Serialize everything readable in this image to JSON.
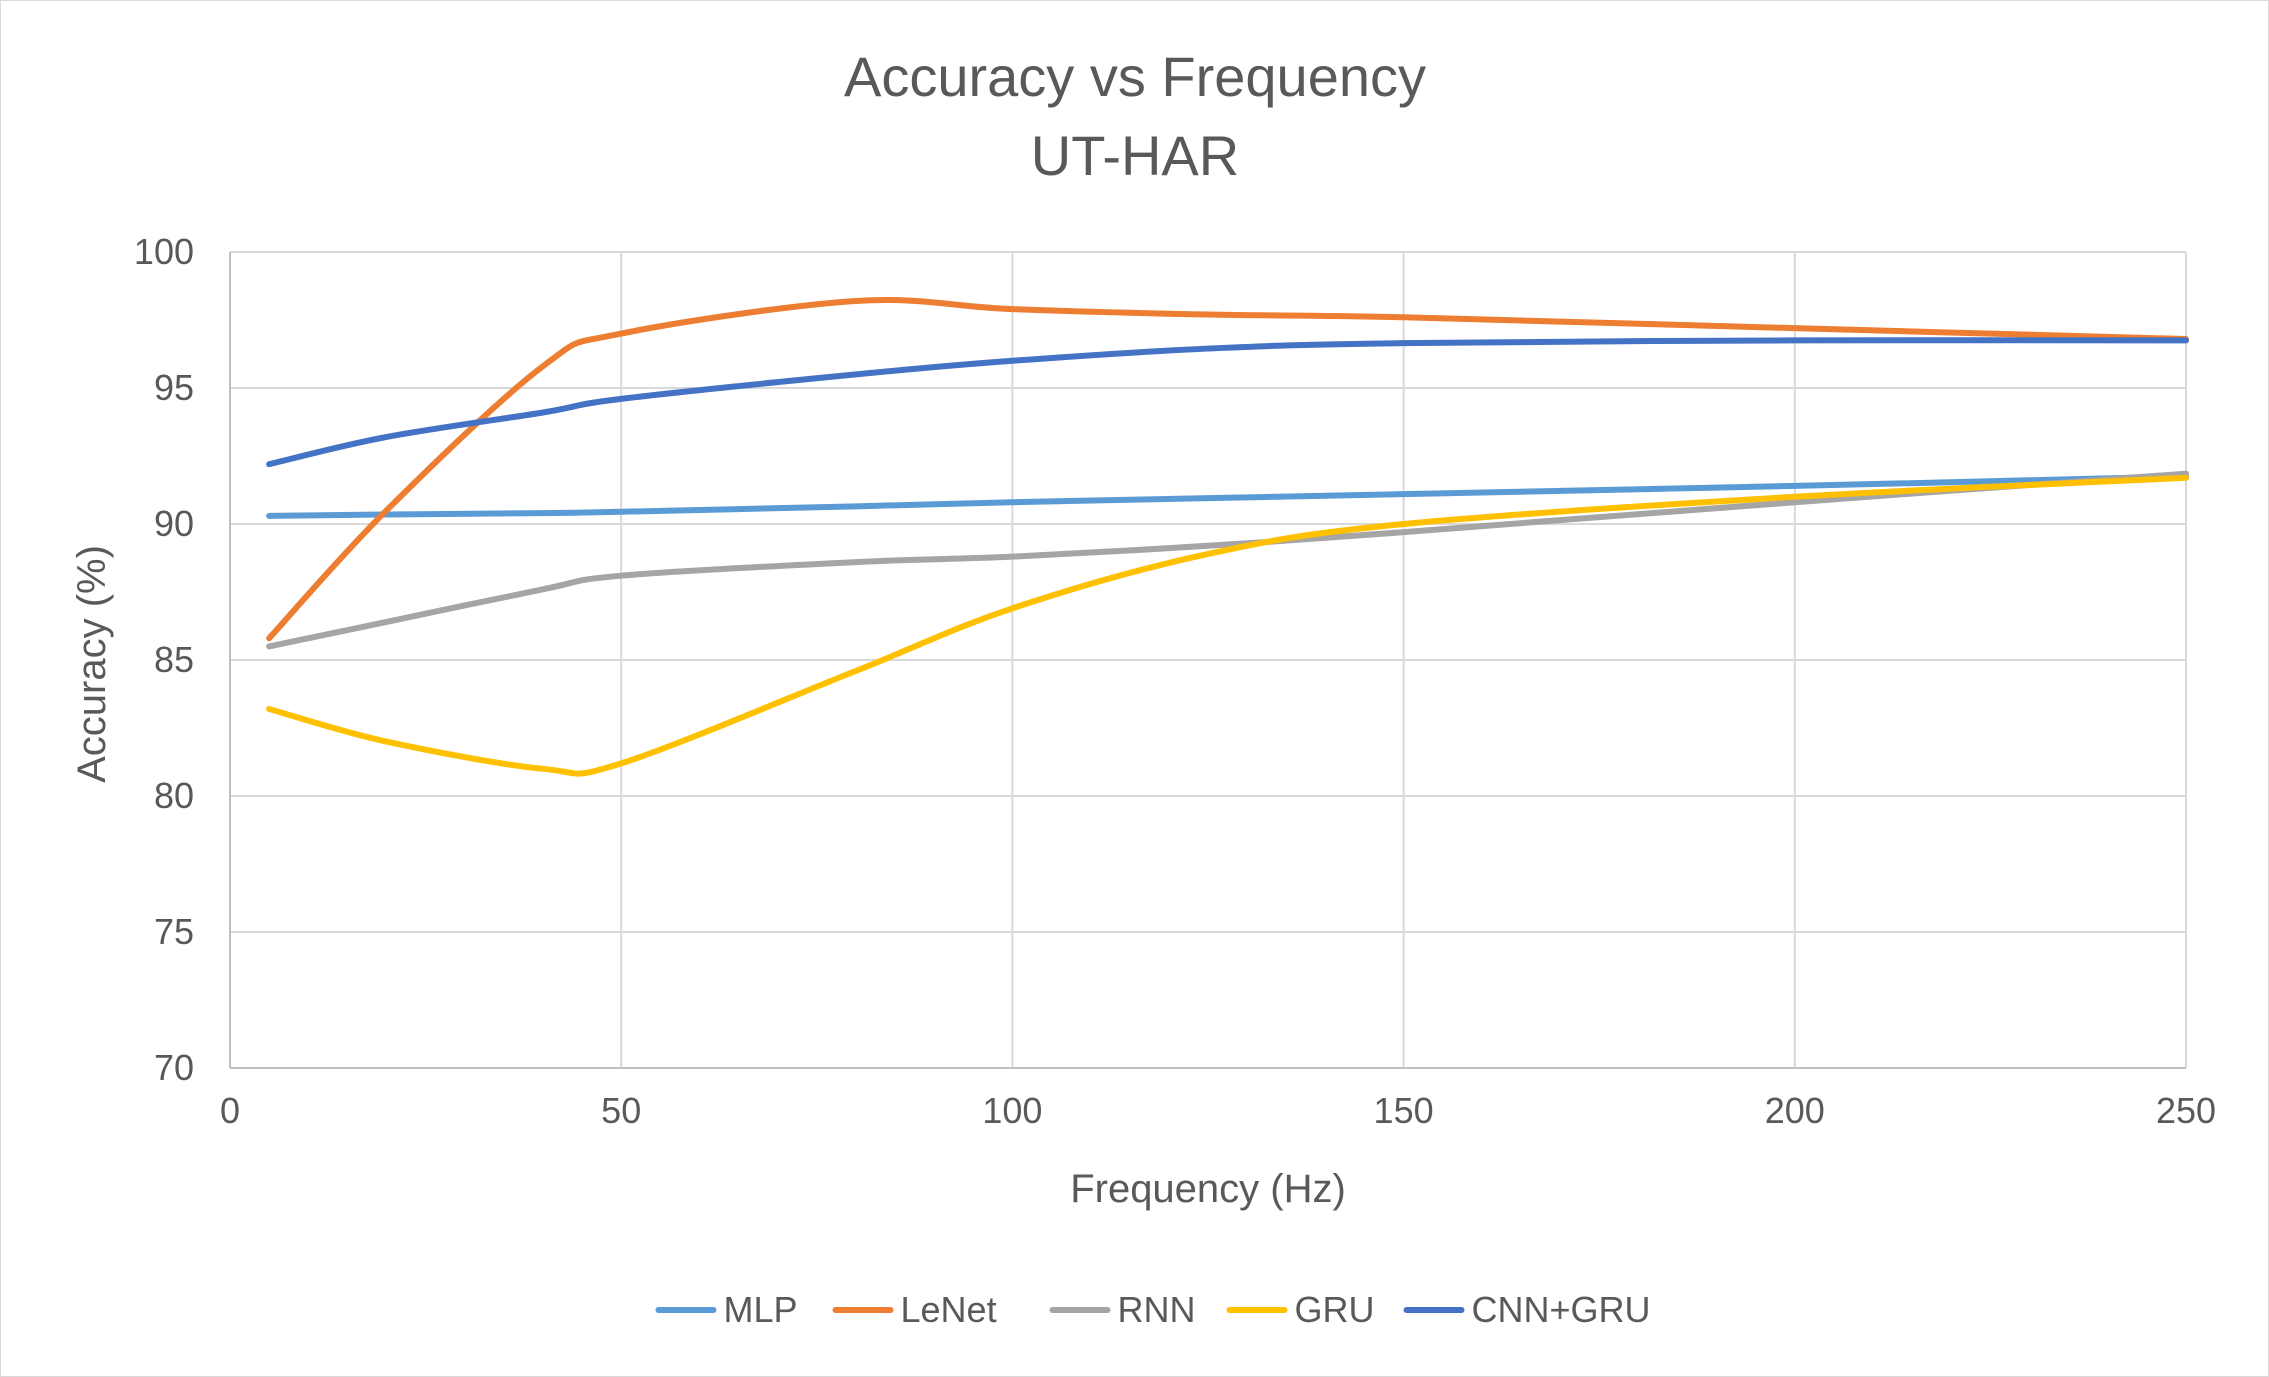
{
  "chart_data": {
    "type": "line",
    "title": "Accuracy vs Frequency",
    "subtitle": "UT-HAR",
    "xlabel": "Frequency (Hz)",
    "ylabel": "Accuracy (%)",
    "xlim": [
      0,
      250
    ],
    "ylim": [
      70,
      100
    ],
    "xticks": [
      "0",
      "50",
      "100",
      "150",
      "200",
      "250"
    ],
    "yticks": [
      "70",
      "75",
      "80",
      "85",
      "90",
      "95",
      "100"
    ],
    "grid": true,
    "legend_position": "bottom",
    "x": [
      5,
      20,
      40,
      50,
      80,
      100,
      125,
      150,
      200,
      250
    ],
    "series": [
      {
        "name": "MLP",
        "color": "#5B9BD5",
        "values": [
          90.3,
          90.35,
          90.4,
          90.45,
          90.65,
          90.8,
          90.95,
          91.1,
          91.4,
          91.75
        ]
      },
      {
        "name": "LeNet",
        "color": "#ED7D31",
        "values": [
          85.8,
          90.5,
          95.8,
          97.0,
          98.2,
          97.9,
          97.7,
          97.6,
          97.2,
          96.8
        ]
      },
      {
        "name": "RNN",
        "color": "#A5A5A5",
        "values": [
          85.5,
          86.4,
          87.6,
          88.1,
          88.6,
          88.8,
          89.2,
          89.7,
          90.8,
          91.85
        ]
      },
      {
        "name": "GRU",
        "color": "#FFC000",
        "values": [
          83.2,
          82.0,
          81.0,
          81.2,
          84.6,
          86.9,
          88.9,
          90.0,
          91.0,
          91.7
        ]
      },
      {
        "name": "CNN+GRU",
        "color": "#4472C4",
        "values": [
          92.2,
          93.2,
          94.1,
          94.6,
          95.5,
          96.0,
          96.45,
          96.65,
          96.75,
          96.75
        ]
      }
    ]
  }
}
